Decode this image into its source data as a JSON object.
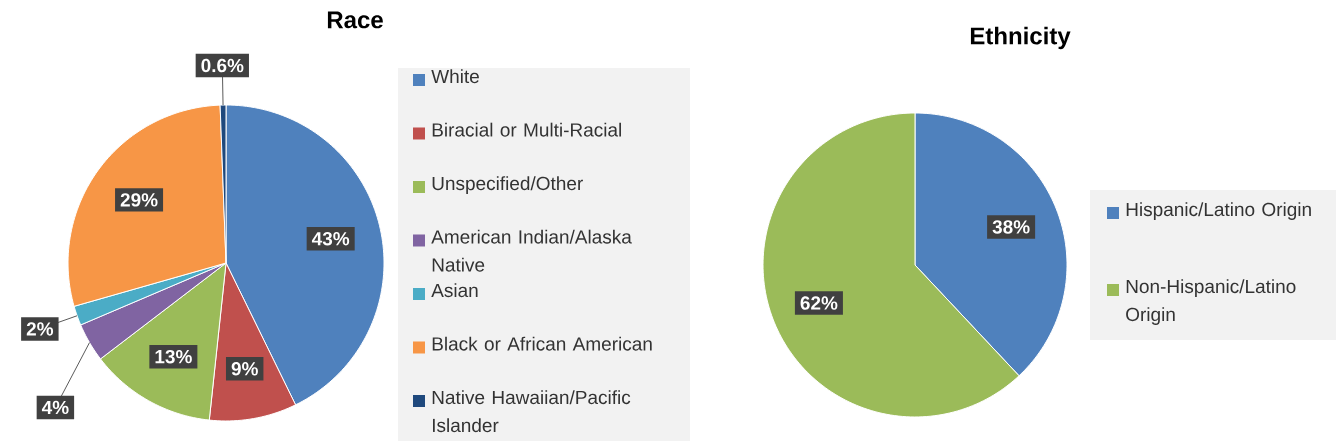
{
  "chart_data": [
    {
      "type": "pie",
      "title": "Race",
      "legend": "right",
      "categories": [
        "White",
        "Biracial or Multi-Racial",
        "Unspecified/Other",
        "American Indian/Alaska Native",
        "Asian",
        "Black or African American",
        "Native Hawaiian/Pacific Islander"
      ],
      "values": [
        43,
        9,
        13,
        4,
        2,
        29,
        0.6
      ],
      "value_labels": [
        "43%",
        "9%",
        "13%",
        "4%",
        "2%",
        "29%",
        "0.6%"
      ],
      "colors": [
        "#4f81bd",
        "#c0504d",
        "#9bbb59",
        "#8064a2",
        "#4bacc6",
        "#f79646",
        "#1f497d"
      ]
    },
    {
      "type": "pie",
      "title": "Ethnicity",
      "legend": "right",
      "categories": [
        "Hispanic/Latino Origin",
        "Non-Hispanic/Latino Origin"
      ],
      "values": [
        38,
        62
      ],
      "value_labels": [
        "38%",
        "62%"
      ],
      "colors": [
        "#4f81bd",
        "#9bbb59"
      ]
    }
  ]
}
